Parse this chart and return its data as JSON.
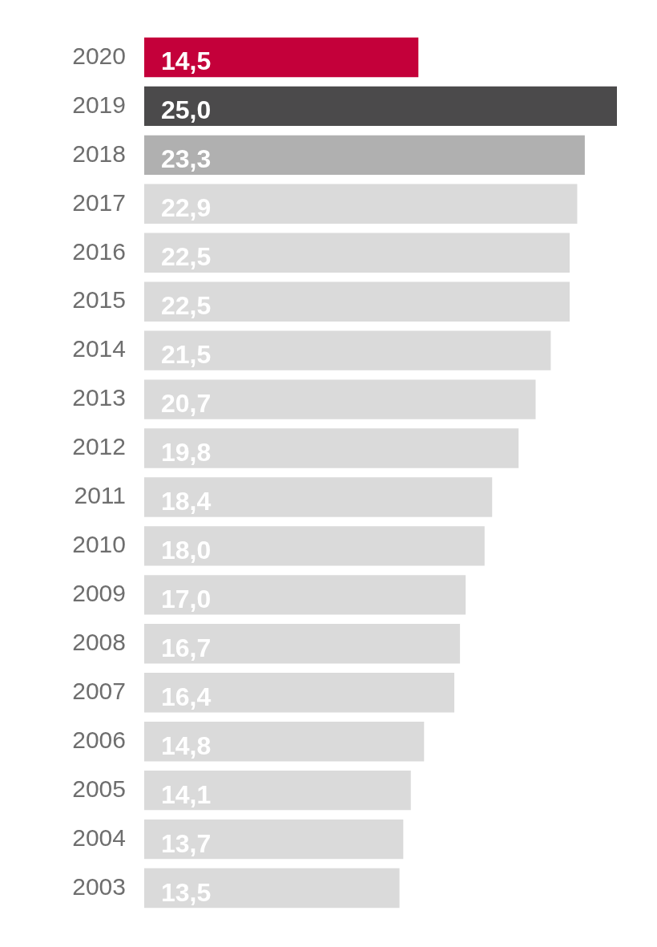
{
  "chart_data": {
    "type": "bar",
    "orientation": "horizontal",
    "categories": [
      "2020",
      "2019",
      "2018",
      "2017",
      "2016",
      "2015",
      "2014",
      "2013",
      "2012",
      "2011",
      "2010",
      "2009",
      "2008",
      "2007",
      "2006",
      "2005",
      "2004",
      "2003"
    ],
    "values": [
      14.5,
      25.0,
      23.3,
      22.9,
      22.5,
      22.5,
      21.5,
      20.7,
      19.8,
      18.4,
      18.0,
      17.0,
      16.7,
      16.4,
      14.8,
      14.1,
      13.7,
      13.5
    ],
    "colors": [
      "#c4003a",
      "#4b4a4b",
      "#b0b0b0",
      "#dadada",
      "#dadada",
      "#dadada",
      "#dadada",
      "#dadada",
      "#dadada",
      "#dadada",
      "#dadada",
      "#dadada",
      "#dadada",
      "#dadada",
      "#dadada",
      "#dadada",
      "#dadada",
      "#dadada"
    ],
    "value_labels": [
      "14,5",
      "25,0",
      "23,3",
      "22,9",
      "22,5",
      "22,5",
      "21,5",
      "20,7",
      "19,8",
      "18,4",
      "18,0",
      "17,0",
      "16,7",
      "16,4",
      "14,8",
      "14,1",
      "13,7",
      "13,5"
    ],
    "grid": false,
    "legend": false
  }
}
